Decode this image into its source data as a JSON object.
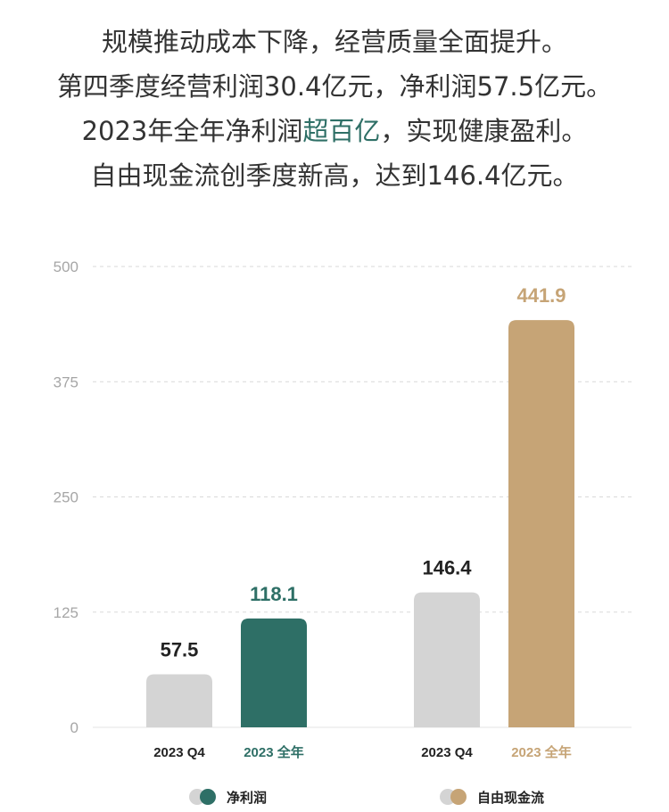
{
  "headline": {
    "line1": "规模推动成本下降，经营质量全面提升。",
    "line2": "第四季度经营利润30.4亿元，净利润57.5亿元。",
    "line3_prefix": "2023年全年净利润",
    "line3_highlight": "超百亿",
    "line3_suffix": "，实现健康盈利。",
    "line4": "自由现金流创季度新高，达到146.4亿元。"
  },
  "colors": {
    "grey": "#d4d4d4",
    "teal": "#2e6f66",
    "gold": "#c6a476",
    "grid": "#d9d9d9"
  },
  "chart_data": {
    "type": "bar",
    "ylim": [
      0,
      500
    ],
    "yticks": [
      0,
      125,
      250,
      375,
      500
    ],
    "grid": true,
    "groups": [
      {
        "name": "净利润",
        "bars": [
          {
            "category": "2023 Q4",
            "value": 57.5,
            "label": "57.5",
            "color": "#d4d4d4",
            "label_color": "#222222",
            "cat_color": "#222222"
          },
          {
            "category": "2023 全年",
            "value": 118.1,
            "label": "118.1",
            "color": "#2e6f66",
            "label_color": "#2e6f66",
            "cat_color": "#2e6f66"
          }
        ]
      },
      {
        "name": "自由现金流",
        "bars": [
          {
            "category": "2023 Q4",
            "value": 146.4,
            "label": "146.4",
            "color": "#d4d4d4",
            "label_color": "#222222",
            "cat_color": "#222222"
          },
          {
            "category": "2023 全年",
            "value": 441.9,
            "label": "441.9",
            "color": "#c6a476",
            "label_color": "#c6a476",
            "cat_color": "#c6a476"
          }
        ]
      }
    ],
    "legend": [
      {
        "label": "净利润",
        "color": "#2e6f66"
      },
      {
        "label": "自由现金流",
        "color": "#c6a476"
      }
    ],
    "legend_position": "bottom"
  }
}
